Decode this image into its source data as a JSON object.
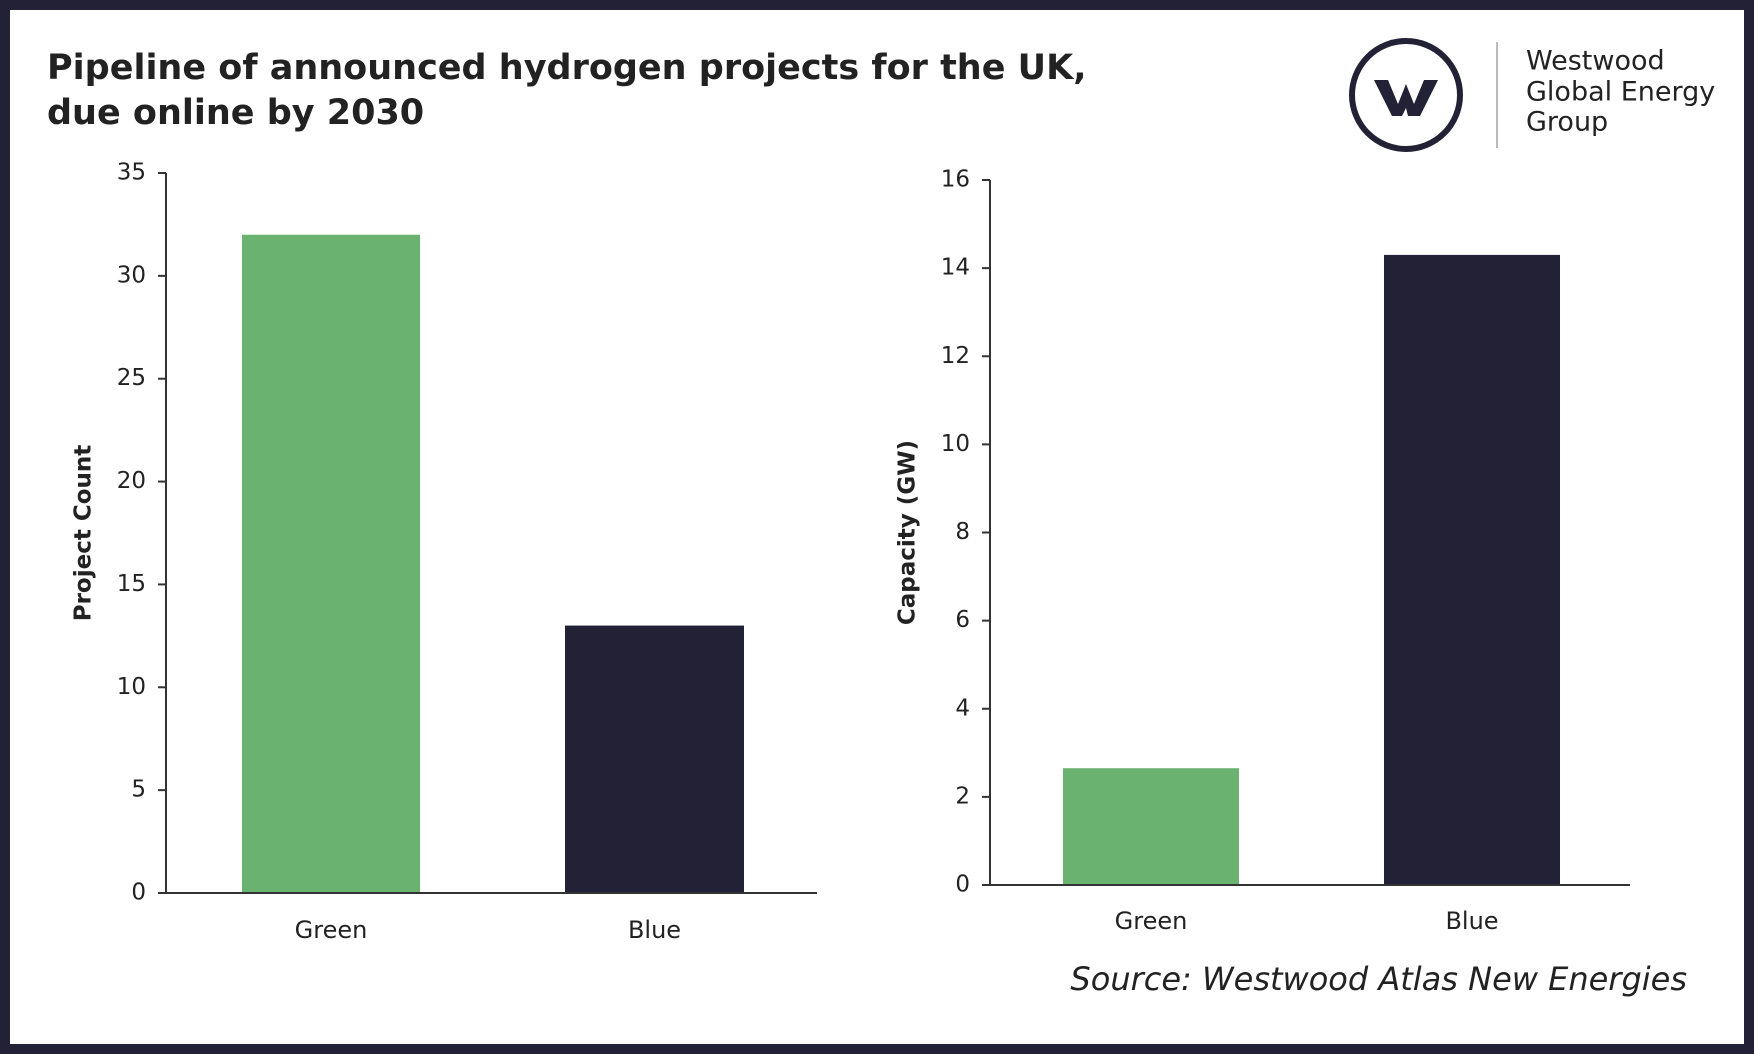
{
  "title": [
    "Pipeline of announced hydrogen projects for the UK,",
    "due online by 2030"
  ],
  "logo": [
    "Westwood",
    "Global Energy",
    "Group"
  ],
  "source": "Source: Westwood Atlas New Energies",
  "chart_data": [
    {
      "type": "bar",
      "y_label": "Project Count",
      "categories": [
        "Green",
        "Blue"
      ],
      "values": [
        32,
        13
      ],
      "colors": [
        "#6ab26f",
        "#232136"
      ],
      "ylim": [
        0,
        35
      ],
      "yticks": [
        0,
        5,
        10,
        15,
        20,
        25,
        30,
        35
      ]
    },
    {
      "type": "bar",
      "y_label": "Capacity (GW)",
      "categories": [
        "Green",
        "Blue"
      ],
      "values": [
        2.65,
        14.3
      ],
      "colors": [
        "#6ab26f",
        "#232136"
      ],
      "ylim": [
        0,
        16
      ],
      "yticks": [
        0,
        2,
        4,
        6,
        8,
        10,
        12,
        14,
        16
      ]
    }
  ]
}
